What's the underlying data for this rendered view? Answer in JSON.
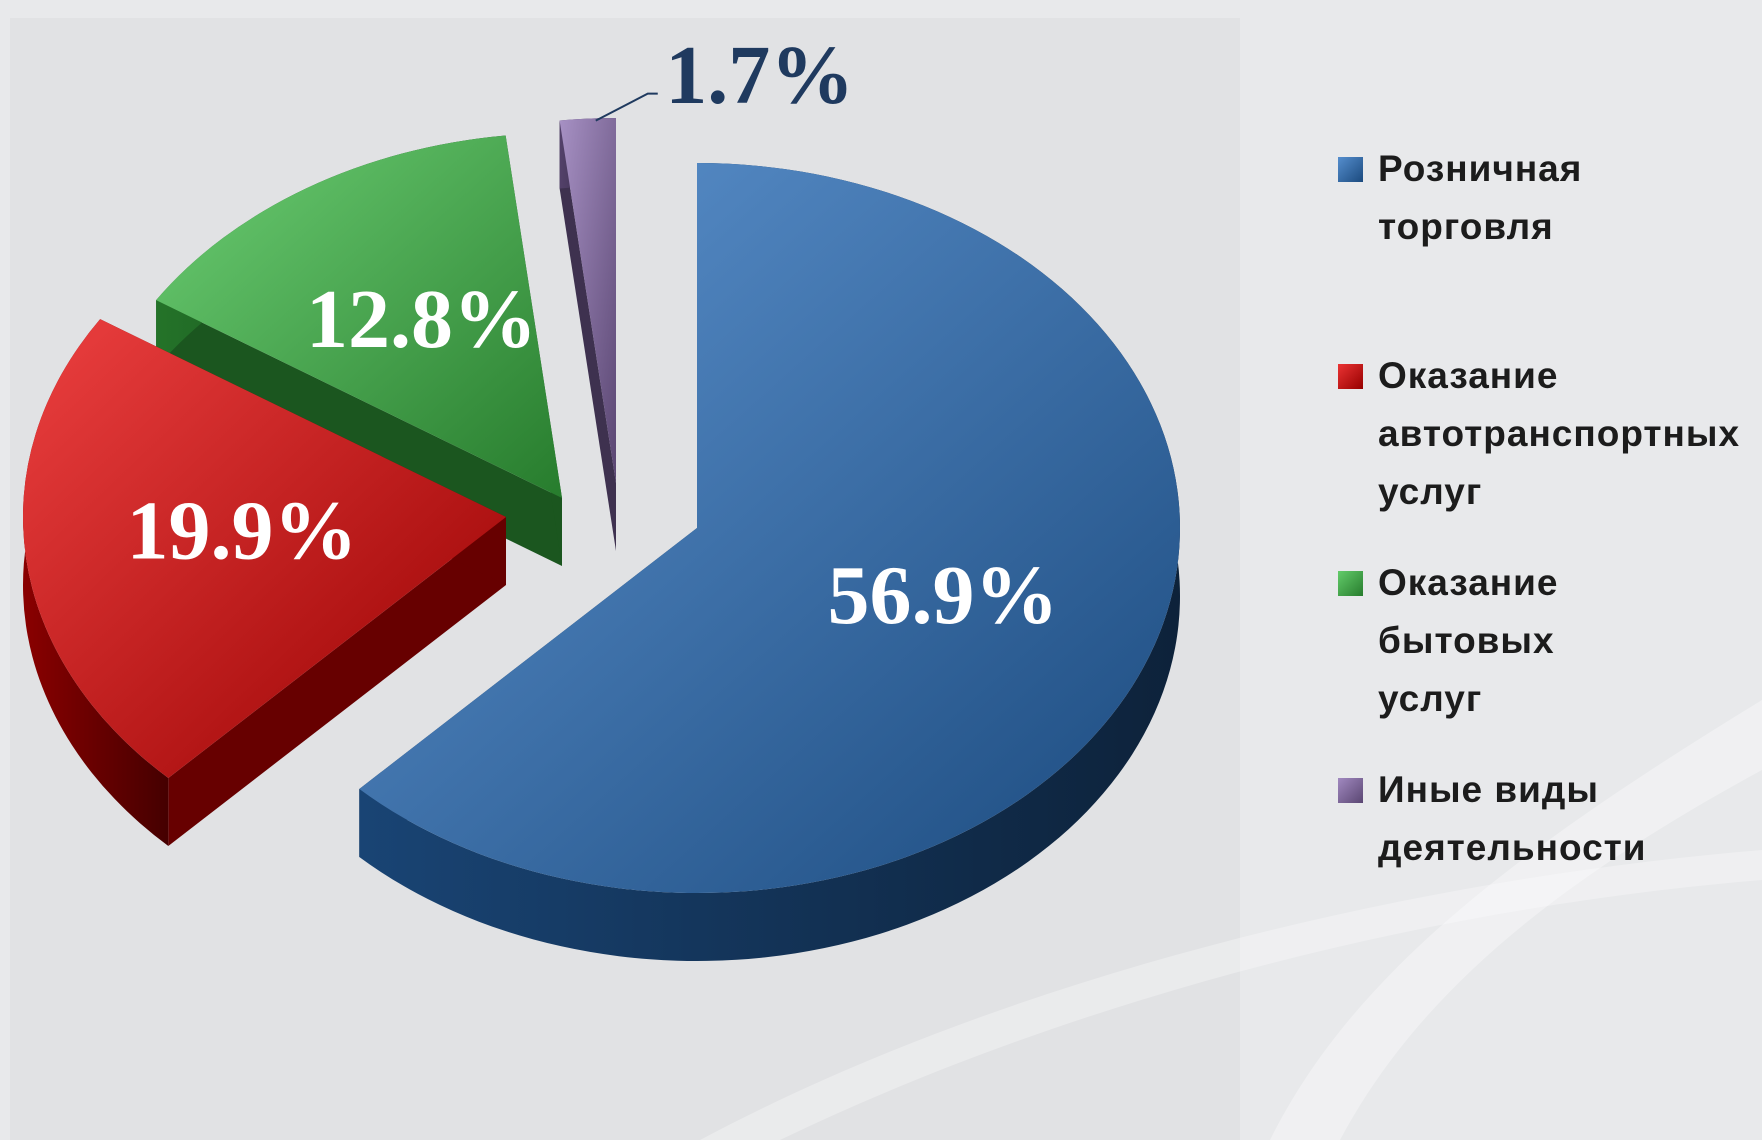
{
  "chart_data": {
    "type": "pie",
    "categories": [
      "Розничная торговля",
      "Оказание автотранспортных услуг",
      "Оказание бытовых услуг",
      "Иные виды деятельности"
    ],
    "values": [
      56.9,
      19.9,
      12.8,
      1.7
    ],
    "value_labels": [
      "56.9%",
      "19.9%",
      "12.8%",
      "1.7%"
    ],
    "colors": [
      "#2a72c2",
      "#e60000",
      "#3cbf45",
      "#8a6cb0"
    ],
    "legend": "right"
  }
}
